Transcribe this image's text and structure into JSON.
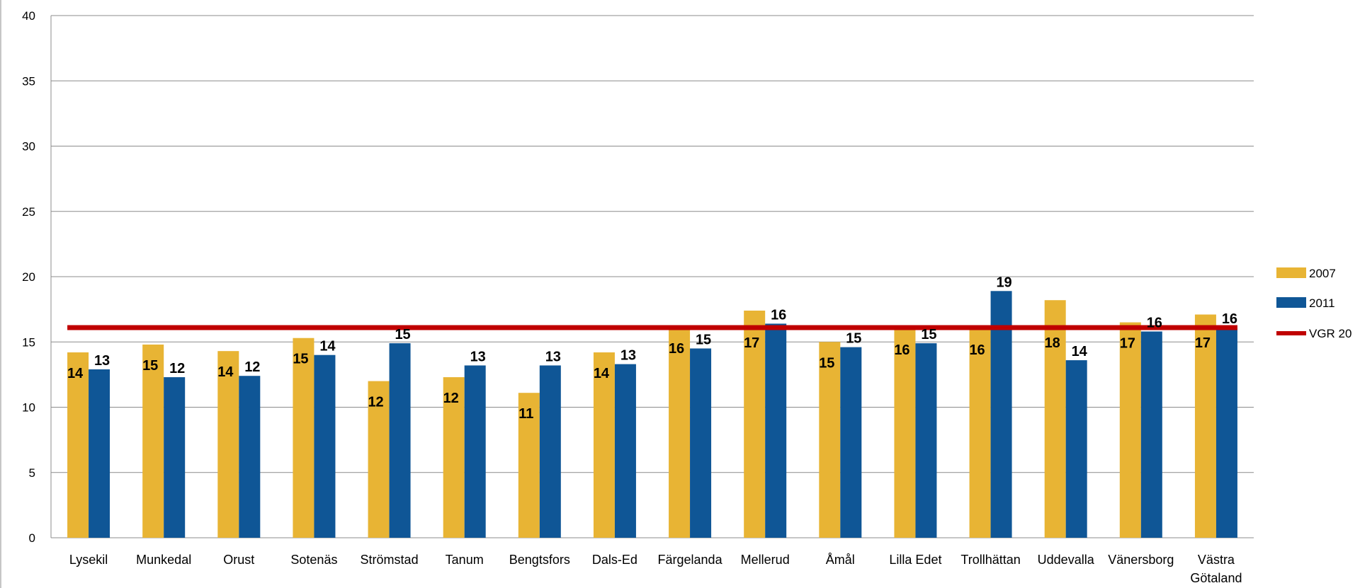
{
  "chart_data": {
    "type": "bar",
    "title": "",
    "xlabel": "",
    "ylabel": "",
    "ylim": [
      0,
      40
    ],
    "yticks": [
      0,
      5,
      10,
      15,
      20,
      25,
      30,
      35,
      40
    ],
    "grid": true,
    "legend_position": "right",
    "categories": [
      "Lysekil",
      "Munkedal",
      "Orust",
      "Sotenäs",
      "Strömstad",
      "Tanum",
      "Bengtsfors",
      "Dals-Ed",
      "Färgelanda",
      "Mellerud",
      "Åmål",
      "Lilla Edet",
      "Trollhättan",
      "Uddevalla",
      "Vänersborg",
      "Västra Götaland"
    ],
    "series": [
      {
        "name": "2007",
        "color": "#E8B434",
        "values": [
          14.2,
          14.8,
          14.3,
          15.3,
          12.0,
          12.3,
          11.1,
          14.2,
          16.1,
          17.4,
          15.0,
          16.0,
          16.0,
          18.2,
          16.5,
          17.1
        ],
        "labels": [
          "14",
          "15",
          "14",
          "15",
          "12",
          "12",
          "11",
          "14",
          "16",
          "17",
          "15",
          "16",
          "16",
          "18",
          "17",
          "17"
        ]
      },
      {
        "name": "2011",
        "color": "#0F5696",
        "values": [
          12.9,
          12.3,
          12.4,
          14.0,
          14.9,
          13.2,
          13.2,
          13.3,
          14.5,
          16.4,
          14.6,
          14.9,
          18.9,
          13.6,
          15.8,
          16.1
        ],
        "labels": [
          "13",
          "12",
          "12",
          "14",
          "15",
          "13",
          "13",
          "13",
          "15",
          "16",
          "15",
          "15",
          "19",
          "14",
          "16",
          "16"
        ]
      }
    ],
    "reference_line": {
      "name": "VGR 20",
      "color": "#C00000",
      "value": 16.1
    }
  }
}
